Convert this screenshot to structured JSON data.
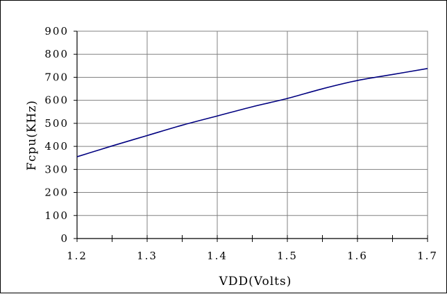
{
  "chart_data": {
    "type": "line",
    "xlabel": "VDD(Volts)",
    "ylabel": "Fcpu(KHz)",
    "xlim": [
      1.2,
      1.7
    ],
    "ylim": [
      0,
      900
    ],
    "x_ticks": [
      "1.2",
      "1.3",
      "1.4",
      "1.5",
      "1.6",
      "1.7"
    ],
    "y_ticks": [
      "0",
      "100",
      "200",
      "300",
      "400",
      "500",
      "600",
      "700",
      "800",
      "900"
    ],
    "grid": true,
    "legend": "none",
    "series": [
      {
        "color": "#000080",
        "x": [
          1.2,
          1.25,
          1.3,
          1.35,
          1.4,
          1.45,
          1.5,
          1.55,
          1.6,
          1.65,
          1.7
        ],
        "y": [
          355,
          402,
          447,
          492,
          532,
          572,
          608,
          650,
          686,
          712,
          738
        ]
      }
    ]
  }
}
